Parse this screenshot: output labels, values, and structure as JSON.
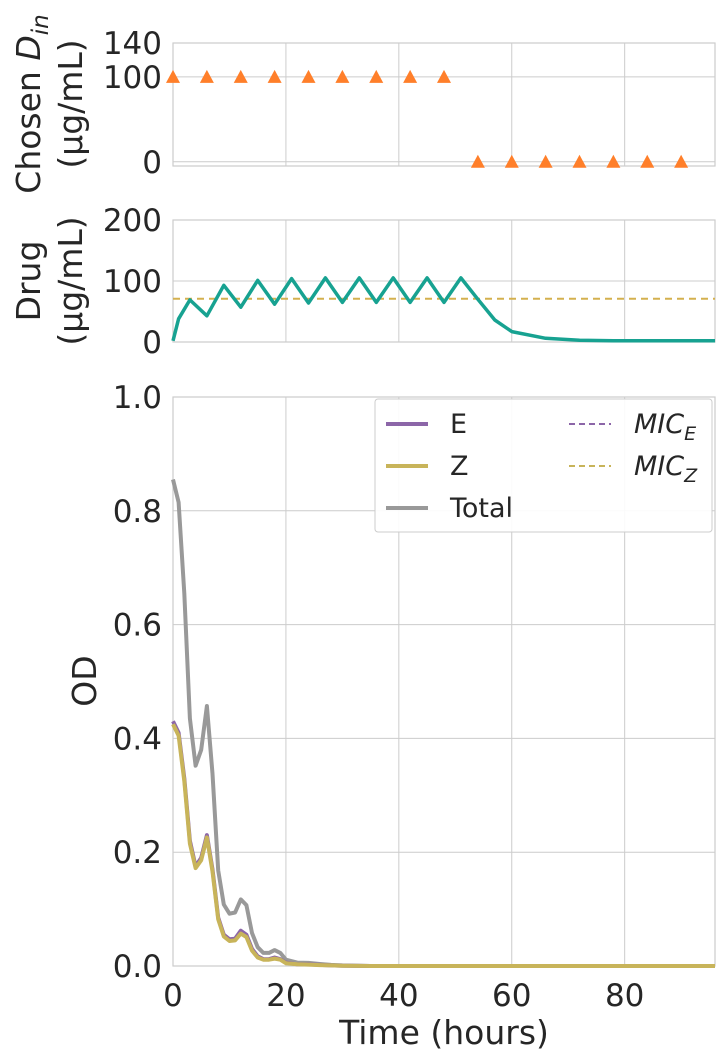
{
  "chart_data": [
    {
      "type": "scatter",
      "ylabel_line1": "Chosen",
      "ylabel_var": "D",
      "ylabel_sub": "in",
      "ylabel_line2": "(μg/mL)",
      "ylim": [
        -5,
        140
      ],
      "xlim": [
        0,
        96
      ],
      "yticks": [
        0,
        100,
        140
      ],
      "grid": true,
      "marker": "triangle",
      "colors": {
        "markers": "#ff7f2a"
      },
      "x": [
        0,
        6,
        12,
        18,
        24,
        30,
        36,
        42,
        48,
        54,
        60,
        66,
        72,
        78,
        84,
        90
      ],
      "y": [
        100,
        100,
        100,
        100,
        100,
        100,
        100,
        100,
        100,
        0,
        0,
        0,
        0,
        0,
        0,
        0
      ]
    },
    {
      "type": "line",
      "ylabel_line1": "Drug",
      "ylabel_line2": "(μg/mL)",
      "ylim": [
        0,
        200
      ],
      "xlim": [
        0,
        96
      ],
      "yticks": [
        0,
        100,
        200
      ],
      "grid": true,
      "colors": {
        "drug": "#17a291",
        "mic": "#d4b04e"
      },
      "mic_value": 71,
      "x": [
        0,
        1,
        3,
        6,
        9,
        12,
        15,
        18,
        21,
        24,
        27,
        30,
        33,
        36,
        39,
        42,
        45,
        48,
        51,
        54,
        57,
        60,
        66,
        72,
        78,
        84,
        90,
        96
      ],
      "y": [
        2,
        38,
        69,
        43,
        93,
        57,
        101,
        62,
        104,
        64,
        105,
        65,
        105,
        65,
        105,
        65,
        105,
        65,
        105,
        70,
        36,
        17,
        6,
        3,
        2,
        2,
        2,
        2
      ]
    },
    {
      "type": "line",
      "xlabel": "Time (hours)",
      "ylabel": "OD",
      "xlim": [
        0,
        96
      ],
      "ylim": [
        0,
        1.0
      ],
      "xticks": [
        0,
        20,
        40,
        60,
        80
      ],
      "yticks": [
        "0.0",
        "0.2",
        "0.4",
        "0.6",
        "0.8",
        "1.0"
      ],
      "grid": true,
      "legend_position": "top-right",
      "x": [
        0,
        1,
        2,
        3,
        4,
        5,
        6,
        7,
        8,
        9,
        10,
        11,
        12,
        13,
        14,
        15,
        16,
        17,
        18,
        19,
        20,
        22,
        24,
        26,
        28,
        30,
        35,
        40,
        50,
        60,
        70,
        80,
        96
      ],
      "series": [
        {
          "name": "E",
          "color": "#8c66a8",
          "values": [
            0.43,
            0.41,
            0.33,
            0.22,
            0.175,
            0.19,
            0.23,
            0.17,
            0.085,
            0.055,
            0.047,
            0.048,
            0.062,
            0.055,
            0.03,
            0.017,
            0.012,
            0.012,
            0.015,
            0.012,
            0.006,
            0.003,
            0.003,
            0.002,
            0.001,
            0.0005,
            0,
            0,
            0,
            0,
            0,
            0,
            0
          ]
        },
        {
          "name": "Z",
          "color": "#c8b45a",
          "values": [
            0.425,
            0.405,
            0.325,
            0.215,
            0.172,
            0.186,
            0.226,
            0.166,
            0.082,
            0.052,
            0.044,
            0.045,
            0.057,
            0.051,
            0.027,
            0.015,
            0.011,
            0.011,
            0.013,
            0.011,
            0.005,
            0.003,
            0.0025,
            0.0015,
            0.001,
            0.0005,
            0,
            0,
            0,
            0,
            0,
            0,
            0
          ]
        },
        {
          "name": "Total",
          "color": "#999999",
          "values": [
            0.855,
            0.815,
            0.655,
            0.435,
            0.352,
            0.38,
            0.457,
            0.338,
            0.168,
            0.108,
            0.092,
            0.094,
            0.117,
            0.107,
            0.058,
            0.033,
            0.023,
            0.023,
            0.028,
            0.023,
            0.011,
            0.006,
            0.0055,
            0.0035,
            0.002,
            0.001,
            0,
            0,
            0,
            0,
            0,
            0,
            0
          ]
        }
      ],
      "legend": {
        "lines": [
          {
            "label": "E",
            "color": "#8c66a8",
            "style": "solid"
          },
          {
            "label": "Z",
            "color": "#c8b45a",
            "style": "solid"
          },
          {
            "label": "Total",
            "color": "#999999",
            "style": "solid"
          }
        ],
        "mic": [
          {
            "label_var": "MIC",
            "label_sub": "E",
            "color": "#8c66a8",
            "style": "dashed"
          },
          {
            "label_var": "MIC",
            "label_sub": "Z",
            "color": "#c8b45a",
            "style": "dashed"
          }
        ]
      }
    }
  ]
}
